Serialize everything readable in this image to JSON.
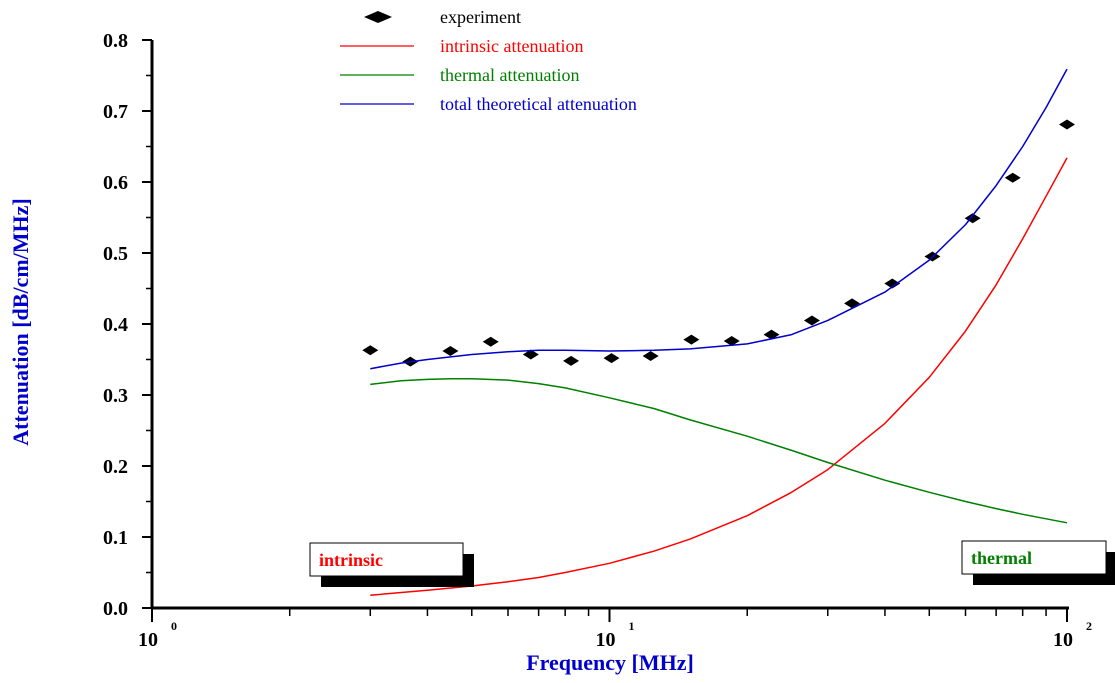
{
  "chart_data": {
    "type": "line",
    "xlabel": "Frequency [MHz]",
    "ylabel": "Attenuation [dB/cm/MHz]",
    "x_scale": "log",
    "xlim": [
      1,
      100
    ],
    "ylim": [
      0.0,
      0.8
    ],
    "y_ticks": [
      "0.0",
      "0.1",
      "0.2",
      "0.3",
      "0.4",
      "0.5",
      "0.6",
      "0.7",
      "0.8"
    ],
    "x_ticks": [
      {
        "base": "10",
        "exp": "0"
      },
      {
        "base": "10",
        "exp": "1"
      },
      {
        "base": "10",
        "exp": "2"
      }
    ],
    "legend_position": "top-center",
    "series": [
      {
        "name": "experiment",
        "kind": "markers",
        "marker": "diamond",
        "color": "#000000",
        "x": [
          3.0,
          3.67,
          4.49,
          5.5,
          6.73,
          8.24,
          10.1,
          12.3,
          15.1,
          18.5,
          22.6,
          27.7,
          33.9,
          41.5,
          50.8,
          62.2,
          76.1,
          100.0
        ],
        "y": [
          0.363,
          0.347,
          0.362,
          0.375,
          0.357,
          0.348,
          0.352,
          0.355,
          0.378,
          0.376,
          0.385,
          0.405,
          0.429,
          0.457,
          0.495,
          0.549,
          0.606,
          0.681
        ]
      },
      {
        "name": "intrinsic attenuation",
        "kind": "line",
        "color": "#ff0000",
        "x": [
          3.0,
          4.0,
          5.0,
          6.0,
          7.0,
          8.0,
          10.0,
          12.5,
          15.0,
          20.0,
          25.0,
          30.0,
          40.0,
          50.0,
          60.0,
          70.0,
          80.0,
          90.0,
          100.0
        ],
        "y": [
          0.018,
          0.025,
          0.031,
          0.037,
          0.043,
          0.05,
          0.063,
          0.08,
          0.097,
          0.13,
          0.163,
          0.195,
          0.26,
          0.325,
          0.39,
          0.455,
          0.52,
          0.58,
          0.634
        ]
      },
      {
        "name": "thermal attenuation",
        "kind": "line",
        "color": "#008000",
        "x": [
          3.0,
          3.5,
          4.0,
          4.5,
          5.0,
          6.0,
          7.0,
          8.0,
          10.0,
          12.5,
          15.0,
          20.0,
          25.0,
          30.0,
          40.0,
          50.0,
          60.0,
          70.0,
          80.0,
          100.0
        ],
        "y": [
          0.315,
          0.32,
          0.322,
          0.323,
          0.323,
          0.321,
          0.316,
          0.31,
          0.296,
          0.281,
          0.265,
          0.242,
          0.222,
          0.205,
          0.18,
          0.163,
          0.15,
          0.14,
          0.132,
          0.12
        ]
      },
      {
        "name": "total theoretical attenuation",
        "kind": "line",
        "color": "#0000cc",
        "x": [
          3.0,
          3.5,
          4.0,
          5.0,
          6.0,
          7.0,
          8.0,
          10.0,
          12.5,
          15.0,
          20.0,
          25.0,
          30.0,
          40.0,
          50.0,
          60.0,
          70.0,
          80.0,
          90.0,
          100.0
        ],
        "y": [
          0.337,
          0.345,
          0.35,
          0.357,
          0.361,
          0.363,
          0.363,
          0.362,
          0.363,
          0.365,
          0.372,
          0.385,
          0.405,
          0.445,
          0.49,
          0.54,
          0.595,
          0.65,
          0.705,
          0.759
        ]
      }
    ],
    "annotations": [
      {
        "text": "intrinsic",
        "color": "#ff0000"
      },
      {
        "text": "thermal",
        "color": "#008000"
      }
    ]
  }
}
